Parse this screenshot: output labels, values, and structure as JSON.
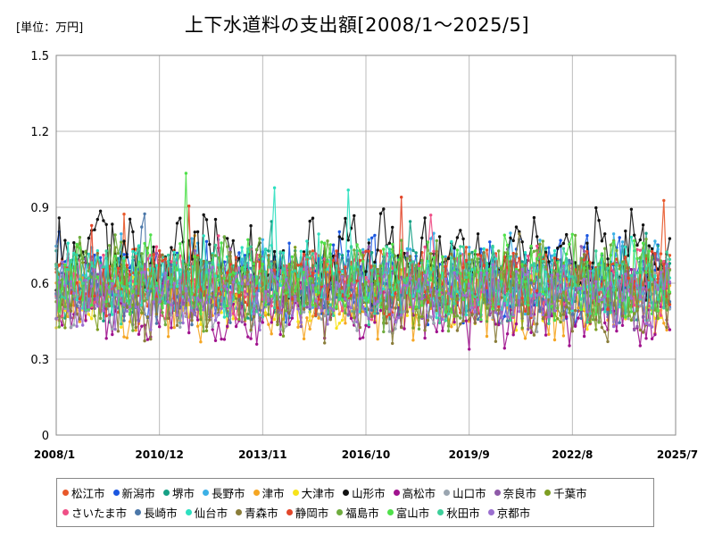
{
  "unit_label": "[単位：万円]",
  "chart_data": {
    "type": "line",
    "title": "上下水道料の支出額[2008/1～2025/5]",
    "xlabel": "",
    "ylabel": "",
    "ylim": [
      0,
      1.5
    ],
    "y_ticks": [
      "0",
      "0.3",
      "0.6",
      "0.9",
      "1.2",
      "1.5"
    ],
    "x_ticks": [
      "2008/1",
      "2010/12",
      "2013/11",
      "2016/10",
      "2019/9",
      "2022/8",
      "2025/7"
    ],
    "grid": true,
    "legend_position": "bottom",
    "x_range": [
      "2008/1",
      "2025/7"
    ],
    "series": [
      {
        "name": "松江市",
        "color": "#e8582a",
        "base": 0.6,
        "amp": 0.1,
        "values": []
      },
      {
        "name": "新潟市",
        "color": "#1a56e0",
        "base": 0.62,
        "amp": 0.14,
        "values": []
      },
      {
        "name": "堺市",
        "color": "#16a085",
        "base": 0.6,
        "amp": 0.12,
        "values": []
      },
      {
        "name": "長野市",
        "color": "#3cb0e6",
        "base": 0.63,
        "amp": 0.13,
        "values": []
      },
      {
        "name": "津市",
        "color": "#f5a623",
        "base": 0.52,
        "amp": 0.12,
        "values": []
      },
      {
        "name": "大津市",
        "color": "#f7e31b",
        "base": 0.55,
        "amp": 0.1,
        "values": []
      },
      {
        "name": "山形市",
        "color": "#111111",
        "base": 0.7,
        "amp": 0.15,
        "values": []
      },
      {
        "name": "高松市",
        "color": "#a0138e",
        "base": 0.5,
        "amp": 0.12,
        "values": []
      },
      {
        "name": "山口市",
        "color": "#9aa5b0",
        "base": 0.55,
        "amp": 0.11,
        "values": []
      },
      {
        "name": "奈良市",
        "color": "#8e5aa8",
        "base": 0.58,
        "amp": 0.12,
        "values": []
      },
      {
        "name": "千葉市",
        "color": "#7e9e23",
        "base": 0.58,
        "amp": 0.13,
        "values": []
      },
      {
        "name": "さいたま市",
        "color": "#ef4f86",
        "base": 0.6,
        "amp": 0.11,
        "values": []
      },
      {
        "name": "長崎市",
        "color": "#4b77a8",
        "base": 0.57,
        "amp": 0.1,
        "values": []
      },
      {
        "name": "仙台市",
        "color": "#2de0c0",
        "base": 0.62,
        "amp": 0.12,
        "values": []
      },
      {
        "name": "青森市",
        "color": "#8a7d3a",
        "base": 0.55,
        "amp": 0.14,
        "values": []
      },
      {
        "name": "静岡市",
        "color": "#e2462a",
        "base": 0.6,
        "amp": 0.1,
        "values": []
      },
      {
        "name": "福島市",
        "color": "#6fac3e",
        "base": 0.6,
        "amp": 0.14,
        "values": []
      },
      {
        "name": "富山市",
        "color": "#4fe04a",
        "base": 0.62,
        "amp": 0.14,
        "values": []
      },
      {
        "name": "秋田市",
        "color": "#3ccf9a",
        "base": 0.6,
        "amp": 0.12,
        "values": []
      },
      {
        "name": "京都市",
        "color": "#9b6fd0",
        "base": 0.55,
        "amp": 0.1,
        "values": []
      }
    ]
  }
}
